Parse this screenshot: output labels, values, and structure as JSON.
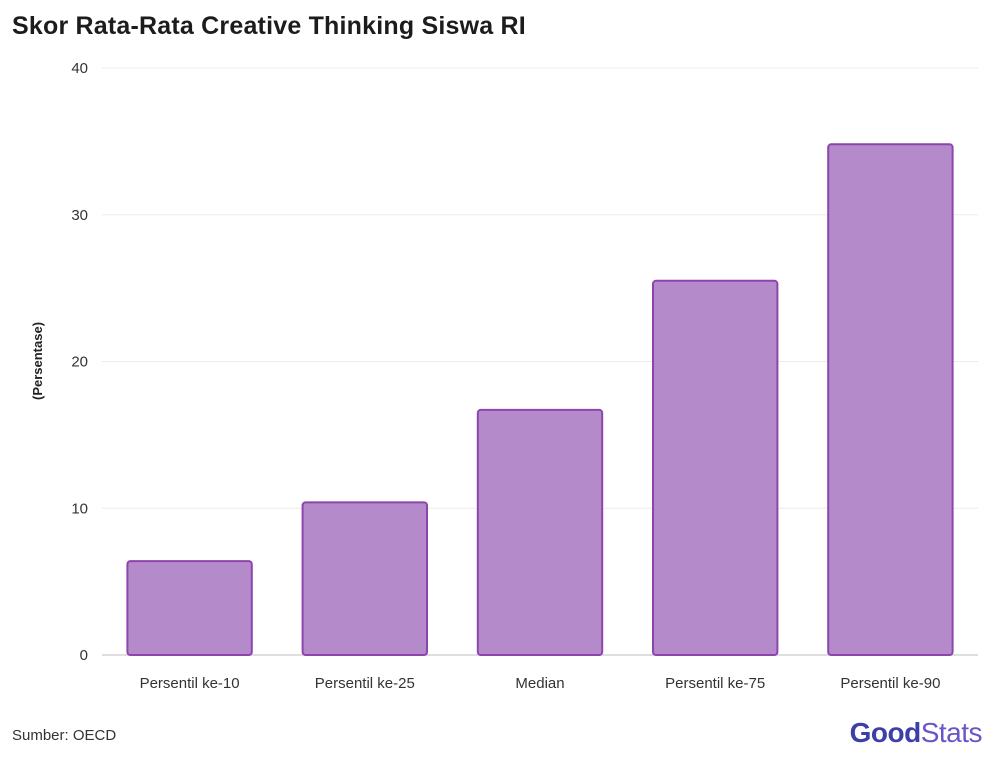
{
  "chart_data": {
    "type": "bar",
    "title": "Skor Rata-Rata Creative Thinking Siswa RI",
    "categories": [
      "Persentil ke-10",
      "Persentil ke-25",
      "Median",
      "Persentil ke-75",
      "Persentil ke-90"
    ],
    "values": [
      6.4,
      10.4,
      16.7,
      25.5,
      34.8
    ],
    "xlabel": "",
    "ylabel": "(Persentase)",
    "ylim": [
      0,
      40
    ],
    "yticks": [
      0,
      10,
      20,
      30,
      40
    ],
    "grid": true,
    "bar_color": "#b58acb",
    "bar_edge_color": "#8e44ad"
  },
  "footer": {
    "source": "Sumber: OECD",
    "logo_part1": "Good",
    "logo_part2": "Stats"
  }
}
